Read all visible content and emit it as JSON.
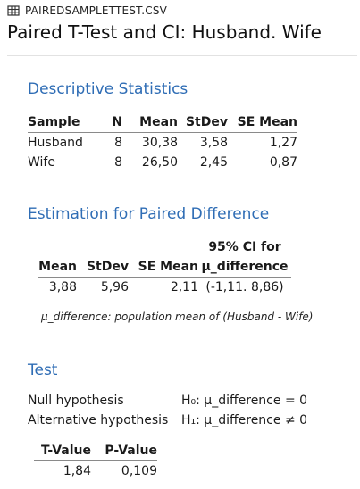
{
  "file": {
    "icon": "table-grid-icon",
    "name": "PAIREDSAMPLETTEST.CSV"
  },
  "title": "Paired T-Test and CI: Husband. Wife",
  "descriptive": {
    "title": "Descriptive Statistics",
    "headers": [
      "Sample",
      "N",
      "Mean",
      "StDev",
      "SE Mean"
    ],
    "rows": [
      [
        "Husband",
        "8",
        "30,38",
        "3,58",
        "1,27"
      ],
      [
        "Wife",
        "8",
        "26,50",
        "2,45",
        "0,87"
      ]
    ]
  },
  "estimation": {
    "title": "Estimation for Paired Difference",
    "ci_header_top": "95% CI for",
    "headers": [
      "Mean",
      "StDev",
      "SE Mean",
      "μ_difference"
    ],
    "row": [
      "3,88",
      "5,96",
      "2,11",
      "(-1,11. 8,86)"
    ],
    "note": "μ_difference: population mean of (Husband - Wife)"
  },
  "test": {
    "title": "Test",
    "null_label": "Null hypothesis",
    "null_value": "H₀: μ_difference = 0",
    "alt_label": "Alternative hypothesis",
    "alt_value": "H₁: μ_difference ≠ 0",
    "headers": [
      "T-Value",
      "P-Value"
    ],
    "row": [
      "1,84",
      "0,109"
    ]
  }
}
